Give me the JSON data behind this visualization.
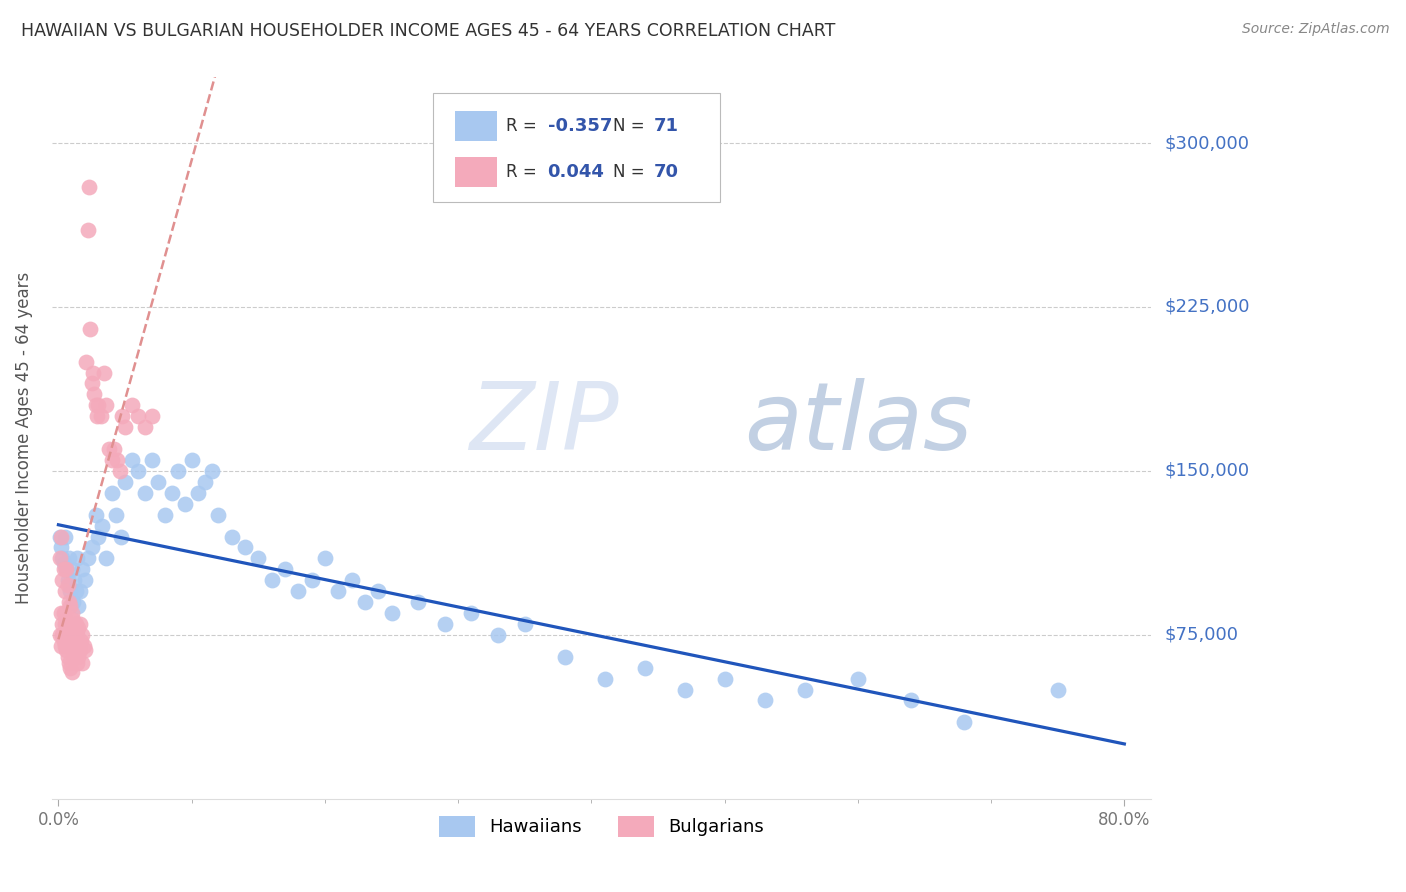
{
  "title": "HAWAIIAN VS BULGARIAN HOUSEHOLDER INCOME AGES 45 - 64 YEARS CORRELATION CHART",
  "source": "Source: ZipAtlas.com",
  "ylabel": "Householder Income Ages 45 - 64 years",
  "ytick_values": [
    75000,
    150000,
    225000,
    300000
  ],
  "ytick_labels": [
    "$75,000",
    "$150,000",
    "$225,000",
    "$300,000"
  ],
  "ymin": 0,
  "ymax": 330000,
  "xmin": -0.005,
  "xmax": 0.82,
  "legend_hawaiians_R": "-0.357",
  "legend_hawaiians_N": "71",
  "legend_bulgarians_R": "0.044",
  "legend_bulgarians_N": "70",
  "hawaiian_color": "#A8C8F0",
  "bulgarian_color": "#F4AABB",
  "hawaiian_line_color": "#2055BB",
  "bulgarian_line_color": "#E09090",
  "background_color": "#FFFFFF",
  "watermark_color": "#C8D8F0",
  "hawaiians_x": [
    0.001,
    0.002,
    0.003,
    0.004,
    0.005,
    0.006,
    0.007,
    0.008,
    0.009,
    0.01,
    0.011,
    0.012,
    0.013,
    0.014,
    0.015,
    0.016,
    0.018,
    0.02,
    0.022,
    0.025,
    0.028,
    0.03,
    0.033,
    0.036,
    0.04,
    0.043,
    0.047,
    0.05,
    0.055,
    0.06,
    0.065,
    0.07,
    0.075,
    0.08,
    0.085,
    0.09,
    0.095,
    0.1,
    0.105,
    0.11,
    0.115,
    0.12,
    0.13,
    0.14,
    0.15,
    0.16,
    0.17,
    0.18,
    0.19,
    0.2,
    0.21,
    0.22,
    0.23,
    0.24,
    0.25,
    0.27,
    0.29,
    0.31,
    0.33,
    0.35,
    0.38,
    0.41,
    0.44,
    0.47,
    0.5,
    0.53,
    0.56,
    0.6,
    0.64,
    0.68,
    0.75
  ],
  "hawaiians_y": [
    120000,
    115000,
    110000,
    108000,
    120000,
    105000,
    100000,
    110000,
    95000,
    105000,
    90000,
    100000,
    95000,
    110000,
    88000,
    95000,
    105000,
    100000,
    110000,
    115000,
    130000,
    120000,
    125000,
    110000,
    140000,
    130000,
    120000,
    145000,
    155000,
    150000,
    140000,
    155000,
    145000,
    130000,
    140000,
    150000,
    135000,
    155000,
    140000,
    145000,
    150000,
    130000,
    120000,
    115000,
    110000,
    100000,
    105000,
    95000,
    100000,
    110000,
    95000,
    100000,
    90000,
    95000,
    85000,
    90000,
    80000,
    85000,
    75000,
    80000,
    65000,
    55000,
    60000,
    50000,
    55000,
    45000,
    50000,
    55000,
    45000,
    35000,
    50000
  ],
  "bulgarians_x": [
    0.001,
    0.001,
    0.002,
    0.002,
    0.002,
    0.003,
    0.003,
    0.003,
    0.004,
    0.004,
    0.004,
    0.005,
    0.005,
    0.005,
    0.006,
    0.006,
    0.006,
    0.007,
    0.007,
    0.007,
    0.008,
    0.008,
    0.008,
    0.009,
    0.009,
    0.009,
    0.01,
    0.01,
    0.01,
    0.011,
    0.011,
    0.012,
    0.012,
    0.013,
    0.013,
    0.014,
    0.014,
    0.015,
    0.015,
    0.016,
    0.016,
    0.017,
    0.018,
    0.018,
    0.019,
    0.02,
    0.021,
    0.022,
    0.023,
    0.024,
    0.025,
    0.026,
    0.027,
    0.028,
    0.029,
    0.03,
    0.032,
    0.034,
    0.036,
    0.038,
    0.04,
    0.042,
    0.044,
    0.046,
    0.048,
    0.05,
    0.055,
    0.06,
    0.065,
    0.07
  ],
  "bulgarians_y": [
    110000,
    75000,
    120000,
    85000,
    70000,
    100000,
    80000,
    75000,
    105000,
    85000,
    72000,
    95000,
    80000,
    70000,
    105000,
    82000,
    68000,
    98000,
    78000,
    65000,
    90000,
    75000,
    62000,
    88000,
    72000,
    60000,
    85000,
    70000,
    58000,
    82000,
    68000,
    78000,
    65000,
    80000,
    68000,
    75000,
    62000,
    78000,
    65000,
    80000,
    68000,
    72000,
    75000,
    62000,
    70000,
    68000,
    200000,
    260000,
    280000,
    215000,
    190000,
    195000,
    185000,
    180000,
    175000,
    180000,
    175000,
    195000,
    180000,
    160000,
    155000,
    160000,
    155000,
    150000,
    175000,
    170000,
    180000,
    175000,
    170000,
    175000
  ]
}
